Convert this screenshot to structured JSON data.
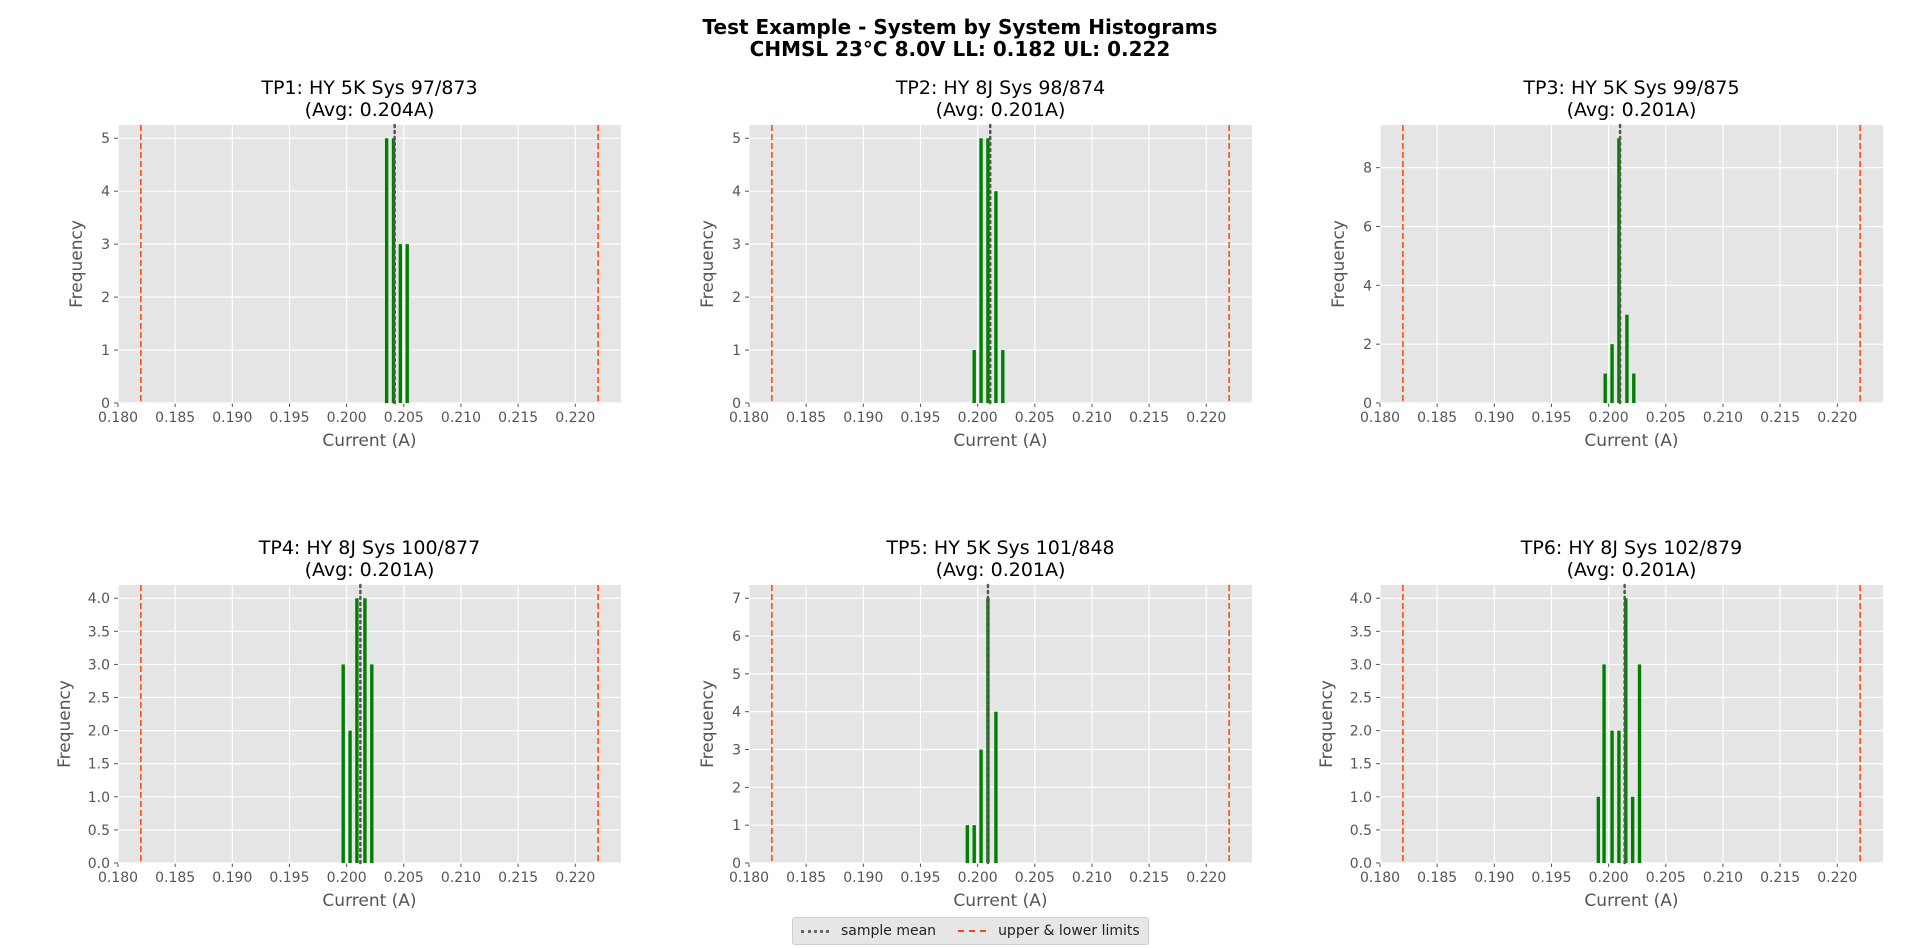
{
  "figure": {
    "title_line1": "Test Example - System by System Histograms",
    "title_line2": "CHMSL 23°C 8.0V  LL: 0.182  UL: 0.222"
  },
  "legend": {
    "mean_label": "sample mean",
    "limits_label": "upper & lower limits"
  },
  "colors": {
    "bar": "#008000",
    "mean_line": "#555555",
    "limit_line": "#ff4500",
    "axes_background": "#e5e5e5",
    "grid": "#ffffff"
  },
  "chart_data": [
    {
      "type": "bar",
      "title": "TP1: HY 5K Sys 97/873",
      "subtitle": "(Avg: 0.204A)",
      "xlabel": "Current (A)",
      "ylabel": "Frequency",
      "xlim": [
        0.18,
        0.224
      ],
      "ylim": [
        0,
        5.25
      ],
      "xticks": [
        "0.180",
        "0.185",
        "0.190",
        "0.195",
        "0.200",
        "0.205",
        "0.210",
        "0.215",
        "0.220"
      ],
      "yticks": [
        "0",
        "1",
        "2",
        "3",
        "4",
        "5"
      ],
      "mean": 0.2042,
      "lower_limit": 0.182,
      "upper_limit": 0.222,
      "bins": [
        {
          "x": 0.2035,
          "count": 5
        },
        {
          "x": 0.2041,
          "count": 5
        },
        {
          "x": 0.2047,
          "count": 3
        },
        {
          "x": 0.2053,
          "count": 3
        }
      ]
    },
    {
      "type": "bar",
      "title": "TP2: HY 8J Sys 98/874",
      "subtitle": "(Avg: 0.201A)",
      "xlabel": "Current (A)",
      "ylabel": "Frequency",
      "xlim": [
        0.18,
        0.224
      ],
      "ylim": [
        0,
        5.25
      ],
      "xticks": [
        "0.180",
        "0.185",
        "0.190",
        "0.195",
        "0.200",
        "0.205",
        "0.210",
        "0.215",
        "0.220"
      ],
      "yticks": [
        "0",
        "1",
        "2",
        "3",
        "4",
        "5"
      ],
      "mean": 0.2011,
      "lower_limit": 0.182,
      "upper_limit": 0.222,
      "bins": [
        {
          "x": 0.1997,
          "count": 1
        },
        {
          "x": 0.2003,
          "count": 5
        },
        {
          "x": 0.2009,
          "count": 5
        },
        {
          "x": 0.2016,
          "count": 4
        },
        {
          "x": 0.2022,
          "count": 1
        }
      ]
    },
    {
      "type": "bar",
      "title": "TP3: HY 5K Sys 99/875",
      "subtitle": "(Avg: 0.201A)",
      "xlabel": "Current (A)",
      "ylabel": "Frequency",
      "xlim": [
        0.18,
        0.224
      ],
      "ylim": [
        0,
        9.45
      ],
      "xticks": [
        "0.180",
        "0.185",
        "0.190",
        "0.195",
        "0.200",
        "0.205",
        "0.210",
        "0.215",
        "0.220"
      ],
      "yticks": [
        "0",
        "2",
        "4",
        "6",
        "8"
      ],
      "mean": 0.201,
      "lower_limit": 0.182,
      "upper_limit": 0.222,
      "bins": [
        {
          "x": 0.1997,
          "count": 1
        },
        {
          "x": 0.2003,
          "count": 2
        },
        {
          "x": 0.2009,
          "count": 9
        },
        {
          "x": 0.2016,
          "count": 3
        },
        {
          "x": 0.2022,
          "count": 1
        }
      ]
    },
    {
      "type": "bar",
      "title": "TP4: HY 8J Sys 100/877",
      "subtitle": "(Avg: 0.201A)",
      "xlabel": "Current (A)",
      "ylabel": "Frequency",
      "xlim": [
        0.18,
        0.224
      ],
      "ylim": [
        0,
        4.2
      ],
      "xticks": [
        "0.180",
        "0.185",
        "0.190",
        "0.195",
        "0.200",
        "0.205",
        "0.210",
        "0.215",
        "0.220"
      ],
      "yticks": [
        "0.0",
        "0.5",
        "1.0",
        "1.5",
        "2.0",
        "2.5",
        "3.0",
        "3.5",
        "4.0"
      ],
      "mean": 0.2012,
      "lower_limit": 0.182,
      "upper_limit": 0.222,
      "bins": [
        {
          "x": 0.1997,
          "count": 3
        },
        {
          "x": 0.2003,
          "count": 2
        },
        {
          "x": 0.2009,
          "count": 4
        },
        {
          "x": 0.2016,
          "count": 4
        },
        {
          "x": 0.2022,
          "count": 3
        }
      ]
    },
    {
      "type": "bar",
      "title": "TP5: HY 5K Sys 101/848",
      "subtitle": "(Avg: 0.201A)",
      "xlabel": "Current (A)",
      "ylabel": "Frequency",
      "xlim": [
        0.18,
        0.224
      ],
      "ylim": [
        0,
        7.35
      ],
      "xticks": [
        "0.180",
        "0.185",
        "0.190",
        "0.195",
        "0.200",
        "0.205",
        "0.210",
        "0.215",
        "0.220"
      ],
      "yticks": [
        "0",
        "1",
        "2",
        "3",
        "4",
        "5",
        "6",
        "7"
      ],
      "mean": 0.2009,
      "lower_limit": 0.182,
      "upper_limit": 0.222,
      "bins": [
        {
          "x": 0.1991,
          "count": 1
        },
        {
          "x": 0.1997,
          "count": 1
        },
        {
          "x": 0.2003,
          "count": 3
        },
        {
          "x": 0.2009,
          "count": 7
        },
        {
          "x": 0.2016,
          "count": 4
        }
      ]
    },
    {
      "type": "bar",
      "title": "TP6: HY 8J Sys 102/879",
      "subtitle": "(Avg: 0.201A)",
      "xlabel": "Current (A)",
      "ylabel": "Frequency",
      "xlim": [
        0.18,
        0.224
      ],
      "ylim": [
        0,
        4.2
      ],
      "xticks": [
        "0.180",
        "0.185",
        "0.190",
        "0.195",
        "0.200",
        "0.205",
        "0.210",
        "0.215",
        "0.220"
      ],
      "yticks": [
        "0.0",
        "0.5",
        "1.0",
        "1.5",
        "2.0",
        "2.5",
        "3.0",
        "3.5",
        "4.0"
      ],
      "mean": 0.2014,
      "lower_limit": 0.182,
      "upper_limit": 0.222,
      "bins": [
        {
          "x": 0.1991,
          "count": 1
        },
        {
          "x": 0.1996,
          "count": 3
        },
        {
          "x": 0.2003,
          "count": 2
        },
        {
          "x": 0.2009,
          "count": 2
        },
        {
          "x": 0.2015,
          "count": 4
        },
        {
          "x": 0.2021,
          "count": 1
        },
        {
          "x": 0.2027,
          "count": 3
        }
      ]
    }
  ]
}
